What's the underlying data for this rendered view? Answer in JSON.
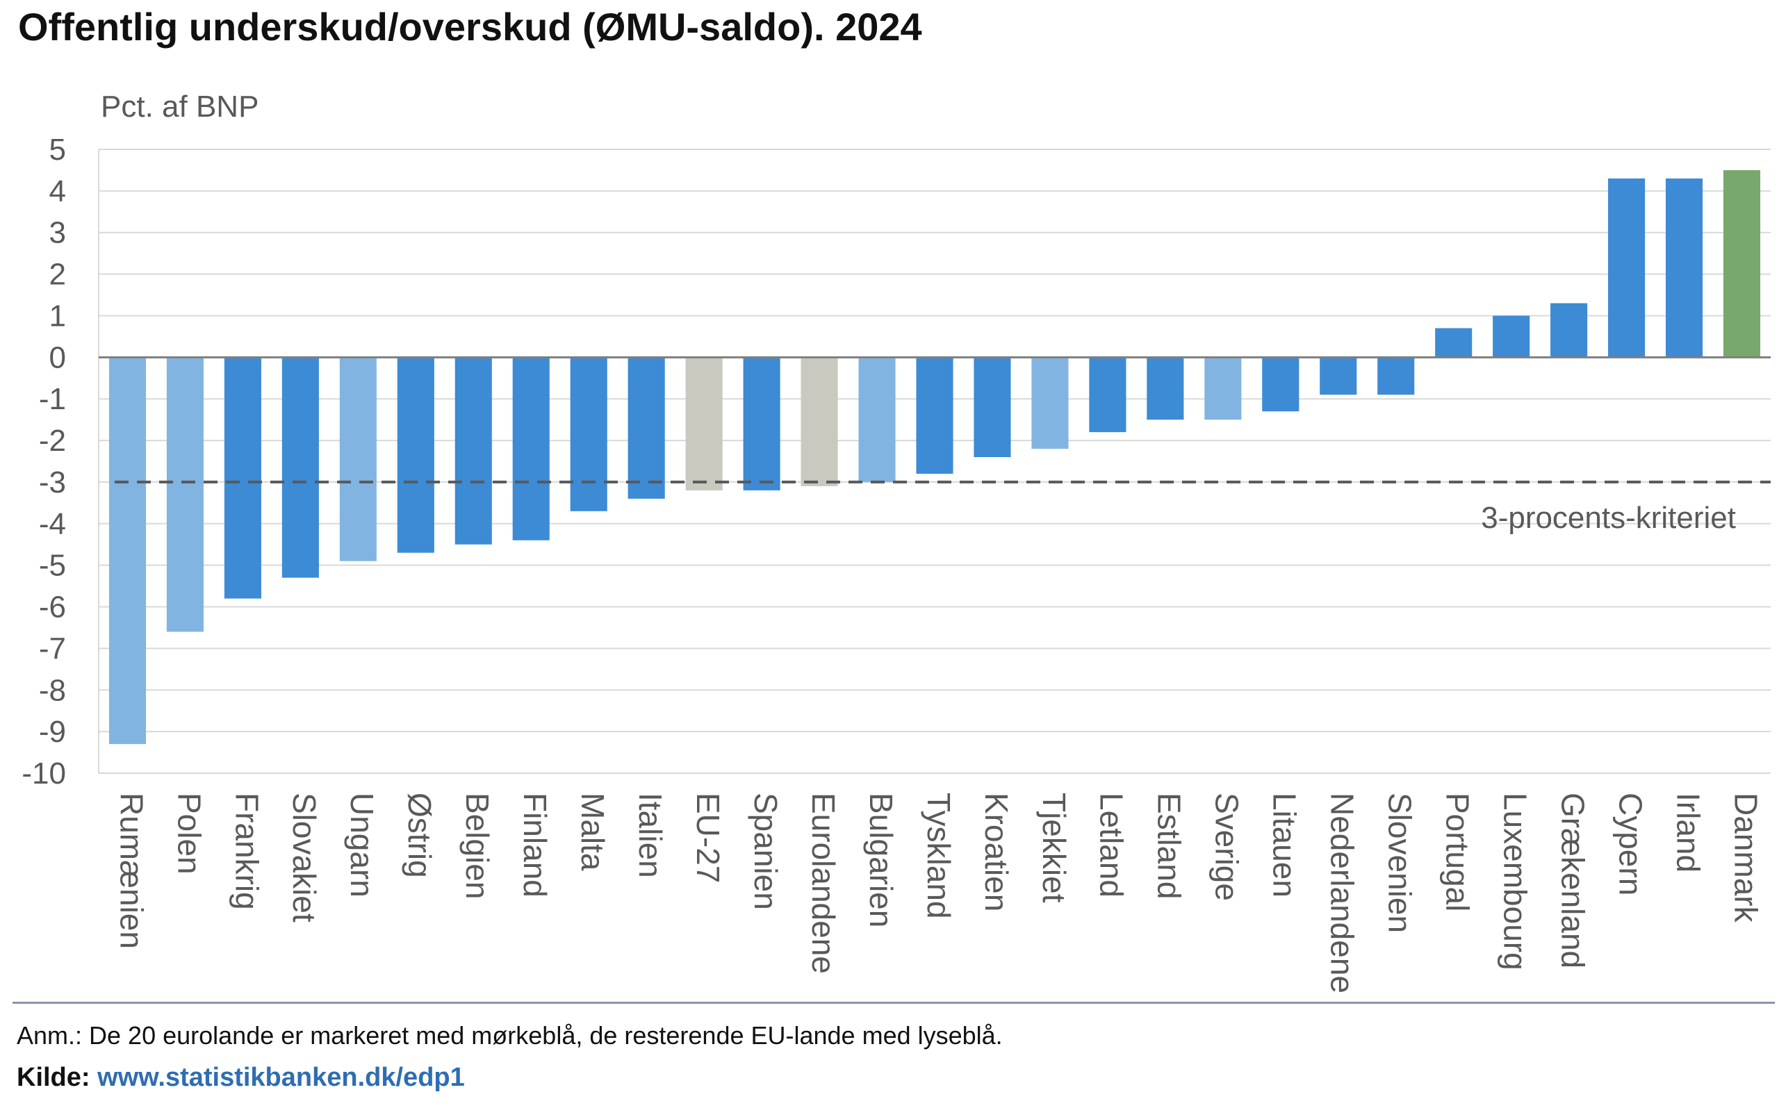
{
  "chart_data": {
    "type": "bar",
    "title": "Offentlig underskud/overskud (ØMU-saldo). 2024",
    "ylabel": "Pct. af BNP",
    "ylim": [
      -10,
      5
    ],
    "yticks": [
      5,
      4,
      3,
      2,
      1,
      0,
      -1,
      -2,
      -3,
      -4,
      -5,
      -6,
      -7,
      -8,
      -9,
      -10
    ],
    "grid": true,
    "categories": [
      "Rumænien",
      "Polen",
      "Frankrig",
      "Slovakiet",
      "Ungarn",
      "Østrig",
      "Belgien",
      "Finland",
      "Malta",
      "Italien",
      "EU-27",
      "Spanien",
      "Eurolandene",
      "Bulgarien",
      "Tyskland",
      "Kroatien",
      "Tjekkiet",
      "Letland",
      "Estland",
      "Sverige",
      "Litauen",
      "Nederlandene",
      "Slovenien",
      "Portugal",
      "Luxembourg",
      "Grækenland",
      "Cypern",
      "Irland",
      "Danmark"
    ],
    "values": [
      -9.3,
      -6.6,
      -5.8,
      -5.3,
      -4.9,
      -4.7,
      -4.5,
      -4.4,
      -3.7,
      -3.4,
      -3.2,
      -3.2,
      -3.1,
      -3.0,
      -2.8,
      -2.4,
      -2.2,
      -1.8,
      -1.5,
      -1.5,
      -1.3,
      -0.9,
      -0.9,
      0.7,
      1.0,
      1.3,
      4.3,
      4.3,
      4.5
    ],
    "groups": [
      "other",
      "other",
      "euro",
      "euro",
      "other",
      "euro",
      "euro",
      "euro",
      "euro",
      "euro",
      "aggregate",
      "euro",
      "aggregate",
      "other",
      "euro",
      "euro",
      "other",
      "euro",
      "euro",
      "other",
      "euro",
      "euro",
      "euro",
      "euro",
      "euro",
      "euro",
      "euro",
      "euro",
      "denmark"
    ],
    "colors": {
      "euro": "#3c8bd4",
      "other": "#82b4e2",
      "aggregate": "#c9c9bf",
      "denmark": "#79a86e",
      "grid": "#d9d9d9",
      "zero_line": "#7f7f7f",
      "reference_line": "#595959",
      "text": "#595959"
    },
    "reference_line": {
      "value": -3,
      "label": "3-procents-kriteriet"
    }
  },
  "footer": {
    "note": "Anm.: De 20 eurolande er markeret med mørkeblå, de resterende EU-lande med lyseblå.",
    "source_label": "Kilde:",
    "source_link": "www.statistikbanken.dk/edp1"
  }
}
